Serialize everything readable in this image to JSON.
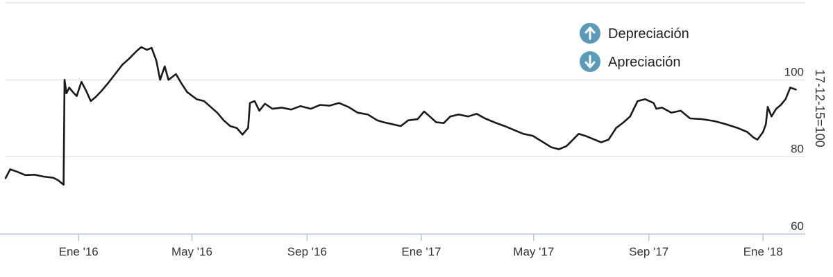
{
  "chart_data": {
    "type": "line",
    "title": "",
    "xlabel": "",
    "ylabel": "17-12-15=100",
    "xlim": [
      "2015-10-15",
      "2018-02-15"
    ],
    "ylim": [
      60,
      120
    ],
    "x_tick_labels": [
      {
        "date": "2016-01-01",
        "label": "Ene '16"
      },
      {
        "date": "2016-05-01",
        "label": "May '16"
      },
      {
        "date": "2016-09-01",
        "label": "Sep '16"
      },
      {
        "date": "2017-01-01",
        "label": "Ene '17"
      },
      {
        "date": "2017-05-01",
        "label": "May '17"
      },
      {
        "date": "2017-09-01",
        "label": "Sep '17"
      },
      {
        "date": "2018-01-01",
        "label": "Ene '18"
      }
    ],
    "y_ticks": [
      60,
      80,
      100
    ],
    "grid": true,
    "legend": {
      "placement": "top-right",
      "items": [
        {
          "label": "Depreciación",
          "icon": "arrow-up-circle-icon",
          "color": "#5b9bb7"
        },
        {
          "label": "Apreciación",
          "icon": "arrow-down-circle-icon",
          "color": "#5b9bb7"
        }
      ]
    },
    "line_color": "#1a1a1a",
    "series": [
      {
        "points": [
          [
            "2015-10-15",
            74.5
          ],
          [
            "2015-10-20",
            76.8
          ],
          [
            "2015-10-27",
            76.2
          ],
          [
            "2015-11-05",
            75.3
          ],
          [
            "2015-11-15",
            75.4
          ],
          [
            "2015-11-25",
            74.9
          ],
          [
            "2015-12-05",
            74.6
          ],
          [
            "2015-12-10",
            74.0
          ],
          [
            "2015-12-16",
            72.8
          ],
          [
            "2015-12-17",
            100.0
          ],
          [
            "2015-12-19",
            96.5
          ],
          [
            "2015-12-22",
            98.0
          ],
          [
            "2015-12-26",
            96.8
          ],
          [
            "2015-12-30",
            95.8
          ],
          [
            "2016-01-04",
            99.5
          ],
          [
            "2016-01-09",
            97.2
          ],
          [
            "2016-01-14",
            94.5
          ],
          [
            "2016-01-19",
            95.5
          ],
          [
            "2016-01-25",
            97.0
          ],
          [
            "2016-02-01",
            99.0
          ],
          [
            "2016-02-09",
            101.5
          ],
          [
            "2016-02-17",
            104.0
          ],
          [
            "2016-02-24",
            105.5
          ],
          [
            "2016-03-03",
            107.5
          ],
          [
            "2016-03-08",
            108.5
          ],
          [
            "2016-03-14",
            107.8
          ],
          [
            "2016-03-19",
            108.3
          ],
          [
            "2016-03-24",
            105.0
          ],
          [
            "2016-03-28",
            100.0
          ],
          [
            "2016-04-02",
            103.5
          ],
          [
            "2016-04-06",
            100.0
          ],
          [
            "2016-04-14",
            101.5
          ],
          [
            "2016-04-20",
            99.0
          ],
          [
            "2016-04-26",
            96.8
          ],
          [
            "2016-05-06",
            95.0
          ],
          [
            "2016-05-14",
            94.5
          ],
          [
            "2016-05-21",
            93.0
          ],
          [
            "2016-05-28",
            91.5
          ],
          [
            "2016-06-04",
            89.5
          ],
          [
            "2016-06-11",
            88.0
          ],
          [
            "2016-06-18",
            87.5
          ],
          [
            "2016-06-24",
            85.8
          ],
          [
            "2016-06-30",
            87.5
          ],
          [
            "2016-07-02",
            94.0
          ],
          [
            "2016-07-07",
            94.5
          ],
          [
            "2016-07-12",
            92.0
          ],
          [
            "2016-07-18",
            93.8
          ],
          [
            "2016-07-26",
            92.5
          ],
          [
            "2016-08-05",
            92.8
          ],
          [
            "2016-08-15",
            92.3
          ],
          [
            "2016-08-25",
            93.2
          ],
          [
            "2016-09-05",
            92.5
          ],
          [
            "2016-09-15",
            93.5
          ],
          [
            "2016-09-25",
            93.3
          ],
          [
            "2016-10-05",
            94.0
          ],
          [
            "2016-10-15",
            93.0
          ],
          [
            "2016-10-25",
            91.5
          ],
          [
            "2016-11-05",
            91.0
          ],
          [
            "2016-11-15",
            89.5
          ],
          [
            "2016-11-22",
            89.0
          ],
          [
            "2016-12-01",
            88.5
          ],
          [
            "2016-12-10",
            88.0
          ],
          [
            "2016-12-18",
            89.5
          ],
          [
            "2016-12-28",
            89.8
          ],
          [
            "2017-01-04",
            91.8
          ],
          [
            "2017-01-10",
            90.5
          ],
          [
            "2017-01-17",
            89.0
          ],
          [
            "2017-01-25",
            88.8
          ],
          [
            "2017-02-01",
            90.5
          ],
          [
            "2017-02-10",
            91.0
          ],
          [
            "2017-02-20",
            90.5
          ],
          [
            "2017-03-01",
            91.2
          ],
          [
            "2017-03-10",
            90.0
          ],
          [
            "2017-03-20",
            89.0
          ],
          [
            "2017-03-31",
            88.0
          ],
          [
            "2017-04-10",
            87.0
          ],
          [
            "2017-04-20",
            86.0
          ],
          [
            "2017-04-30",
            85.5
          ],
          [
            "2017-05-10",
            84.0
          ],
          [
            "2017-05-20",
            82.5
          ],
          [
            "2017-05-28",
            82.0
          ],
          [
            "2017-06-05",
            82.8
          ],
          [
            "2017-06-12",
            84.5
          ],
          [
            "2017-06-18",
            86.0
          ],
          [
            "2017-06-25",
            85.5
          ],
          [
            "2017-07-05",
            84.5
          ],
          [
            "2017-07-12",
            83.8
          ],
          [
            "2017-07-20",
            84.5
          ],
          [
            "2017-07-28",
            87.5
          ],
          [
            "2017-08-05",
            89.0
          ],
          [
            "2017-08-12",
            90.5
          ],
          [
            "2017-08-20",
            94.5
          ],
          [
            "2017-08-28",
            95.0
          ],
          [
            "2017-09-06",
            94.0
          ],
          [
            "2017-09-09",
            92.5
          ],
          [
            "2017-09-15",
            92.8
          ],
          [
            "2017-09-25",
            91.5
          ],
          [
            "2017-10-05",
            92.0
          ],
          [
            "2017-10-15",
            90.0
          ],
          [
            "2017-10-28",
            89.8
          ],
          [
            "2017-11-10",
            89.3
          ],
          [
            "2017-11-22",
            88.5
          ],
          [
            "2017-12-05",
            87.5
          ],
          [
            "2017-12-15",
            86.5
          ],
          [
            "2017-12-22",
            85.0
          ],
          [
            "2017-12-26",
            84.5
          ],
          [
            "2018-01-01",
            86.5
          ],
          [
            "2018-01-04",
            88.5
          ],
          [
            "2018-01-06",
            93.0
          ],
          [
            "2018-01-10",
            90.5
          ],
          [
            "2018-01-15",
            92.5
          ],
          [
            "2018-01-20",
            93.5
          ],
          [
            "2018-01-25",
            95.0
          ],
          [
            "2018-01-30",
            98.0
          ],
          [
            "2018-02-05",
            97.5
          ]
        ]
      }
    ]
  }
}
